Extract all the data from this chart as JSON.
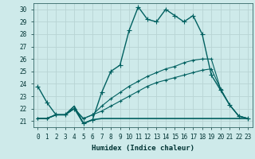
{
  "xlabel": "Humidex (Indice chaleur)",
  "xlim": [
    -0.5,
    23.5
  ],
  "ylim": [
    20.5,
    30.5
  ],
  "yticks": [
    21,
    22,
    23,
    24,
    25,
    26,
    27,
    28,
    29,
    30
  ],
  "xticks": [
    0,
    1,
    2,
    3,
    4,
    5,
    6,
    7,
    8,
    9,
    10,
    11,
    12,
    13,
    14,
    15,
    16,
    17,
    18,
    19,
    20,
    21,
    22,
    23
  ],
  "bg_color": "#ceeaea",
  "grid_color": "#b8d4d4",
  "line_color": "#006060",
  "lines": [
    {
      "y": [
        23.8,
        22.5,
        21.5,
        21.5,
        22.0,
        20.8,
        21.1,
        23.3,
        25.0,
        25.5,
        28.3,
        30.2,
        29.2,
        29.0,
        30.0,
        29.5,
        29.0,
        29.5,
        28.0,
        24.7,
        23.5,
        22.3,
        21.4,
        21.2
      ],
      "marker": "+",
      "lw": 1.0,
      "ms": 4
    },
    {
      "y": [
        21.2,
        21.2,
        21.5,
        21.5,
        22.2,
        20.8,
        21.1,
        21.2,
        21.2,
        21.2,
        21.2,
        21.2,
        21.2,
        21.2,
        21.2,
        21.2,
        21.2,
        21.2,
        21.2,
        21.2,
        21.2,
        21.2,
        21.2,
        21.2
      ],
      "marker": null,
      "lw": 1.2,
      "ms": 0
    },
    {
      "y": [
        21.2,
        21.2,
        21.5,
        21.5,
        22.0,
        21.2,
        21.5,
        22.2,
        22.8,
        23.3,
        23.8,
        24.2,
        24.6,
        24.9,
        25.2,
        25.4,
        25.7,
        25.9,
        26.0,
        26.0,
        23.6,
        22.3,
        21.4,
        21.2
      ],
      "marker": "+",
      "lw": 0.8,
      "ms": 3
    },
    {
      "y": [
        21.2,
        21.2,
        21.5,
        21.5,
        22.0,
        21.2,
        21.5,
        21.8,
        22.2,
        22.6,
        23.0,
        23.4,
        23.8,
        24.1,
        24.3,
        24.5,
        24.7,
        24.9,
        25.1,
        25.2,
        23.6,
        22.3,
        21.4,
        21.2
      ],
      "marker": "+",
      "lw": 0.8,
      "ms": 3
    }
  ]
}
